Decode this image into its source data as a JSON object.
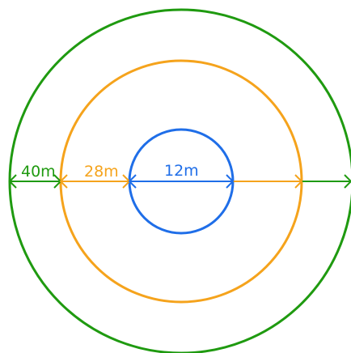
{
  "colors": {
    "outer": "#1f9a10",
    "middle": "#f5a31c",
    "inner": "#1f6ee8",
    "background": "#ffffff"
  },
  "labels": {
    "outer_diameter": "40m",
    "middle_diameter": "28m",
    "inner_diameter": "12m"
  }
}
